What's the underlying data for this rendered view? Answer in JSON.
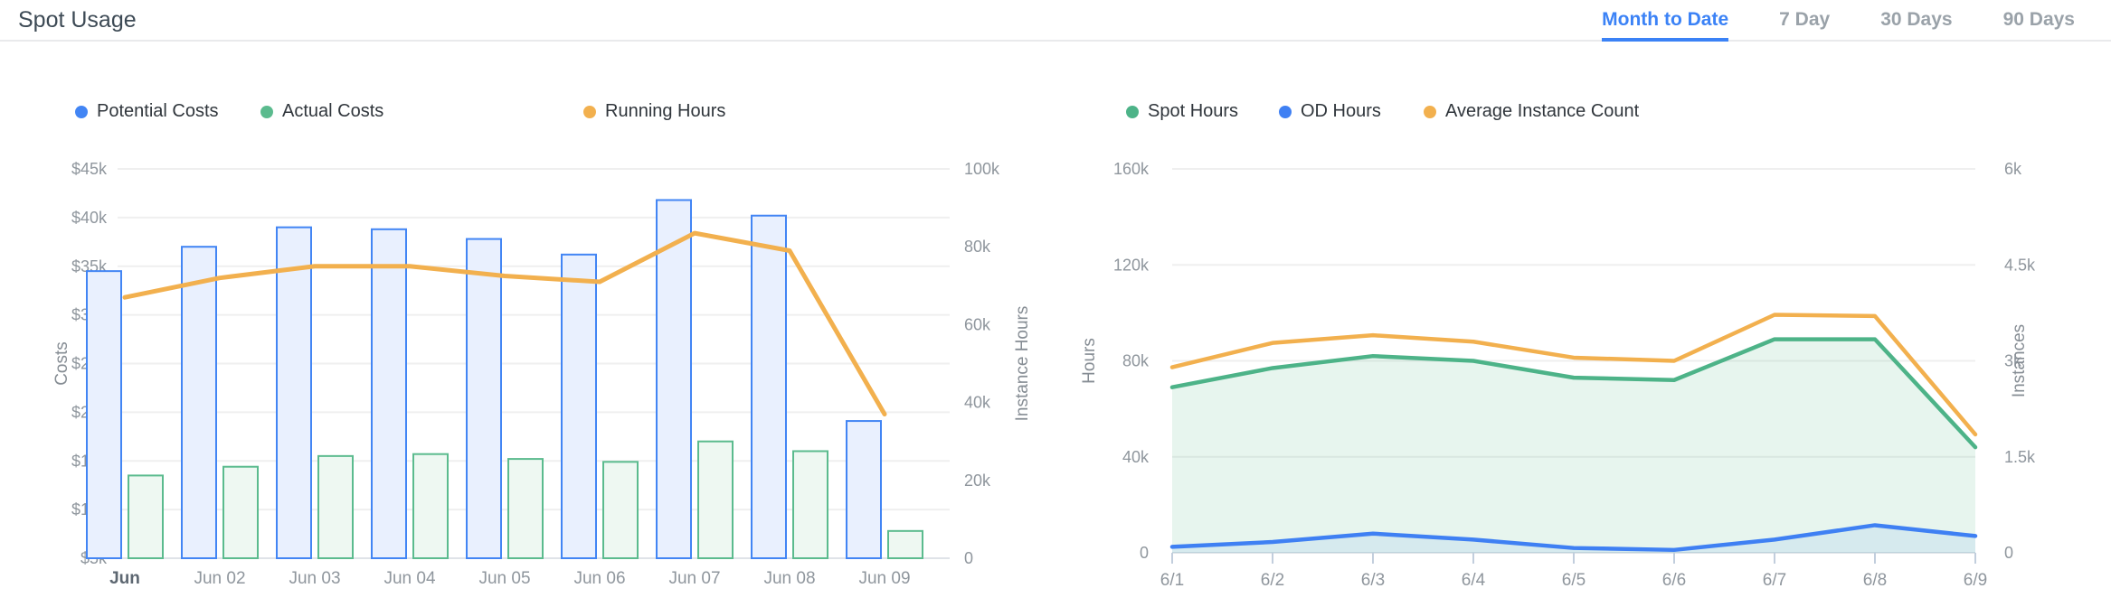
{
  "header": {
    "title": "Spot Usage",
    "tabs": [
      {
        "label": "Month to Date",
        "active": true
      },
      {
        "label": "7 Day",
        "active": false
      },
      {
        "label": "30 Days",
        "active": false
      },
      {
        "label": "90 Days",
        "active": false
      }
    ]
  },
  "colors": {
    "title_text": "#3d4a55",
    "tab_active": "#3b82f6",
    "tab_inactive": "#9aa2a9",
    "legend_text": "#30363c",
    "axis_tick_text": "#8f969d",
    "axis_title_text": "#868d94",
    "grid_line": "#efefef",
    "axis_line": "#dfe3e8",
    "x_tick_mark": "#c2cedd",
    "first_label": "#5d6771",
    "header_border": "#e9eaec"
  },
  "chart_data": [
    {
      "type": "bar",
      "subtype": "grouped-bars-with-line-overlay",
      "categories": [
        "Jun",
        "Jun 02",
        "Jun 03",
        "Jun 04",
        "Jun 05",
        "Jun 06",
        "Jun 07",
        "Jun 08",
        "Jun 09"
      ],
      "series": [
        {
          "name": "Potential Costs",
          "type": "bar",
          "axis": "left",
          "color": "#4285f4",
          "fill": "#e9f0fe",
          "values": [
            34500,
            37000,
            39000,
            38800,
            37800,
            36200,
            41800,
            40200,
            19100
          ]
        },
        {
          "name": "Actual Costs",
          "type": "bar",
          "axis": "left",
          "color": "#5bbb8e",
          "fill": "#eef8f2",
          "values": [
            13500,
            14400,
            15500,
            15700,
            15200,
            14900,
            17000,
            16000,
            7800
          ]
        },
        {
          "name": "Running Hours",
          "type": "line",
          "axis": "right",
          "color": "#f2b04e",
          "values": [
            67000,
            72000,
            75000,
            75000,
            72500,
            71000,
            83500,
            79000,
            37000
          ]
        }
      ],
      "left_axis": {
        "label": "Costs",
        "min": 5000,
        "max": 45000,
        "ticks": [
          "$5k",
          "$10k",
          "$15k",
          "$20k",
          "$25k",
          "$30k",
          "$35k",
          "$40k",
          "$45k"
        ]
      },
      "right_axis": {
        "label": "Instance Hours",
        "min": 0,
        "max": 100000,
        "ticks": [
          "0",
          "20k",
          "40k",
          "60k",
          "80k",
          "100k"
        ]
      },
      "grid": true,
      "legend_position": "top"
    },
    {
      "type": "area",
      "subtype": "area-lines-with-line-overlay",
      "categories": [
        "6/1",
        "6/2",
        "6/3",
        "6/4",
        "6/5",
        "6/6",
        "6/7",
        "6/8",
        "6/9"
      ],
      "series": [
        {
          "name": "Spot Hours",
          "type": "area",
          "axis": "left",
          "color": "#4db388",
          "fill": "rgba(86,185,138,0.14)",
          "values": [
            69000,
            77000,
            82000,
            80000,
            73000,
            72000,
            89000,
            89000,
            44000
          ]
        },
        {
          "name": "OD Hours",
          "type": "area",
          "axis": "left",
          "color": "#3f80f3",
          "fill": "rgba(66,133,244,0.10)",
          "values": [
            2500,
            4500,
            8000,
            5500,
            2000,
            1200,
            5500,
            11500,
            7000
          ]
        },
        {
          "name": "Average Instance Count",
          "type": "line",
          "axis": "right",
          "color": "#f2b04e",
          "values": [
            2900,
            3280,
            3400,
            3300,
            3050,
            3000,
            3720,
            3700,
            1850
          ]
        }
      ],
      "left_axis": {
        "label": "Hours",
        "min": 0,
        "max": 160000,
        "ticks": [
          "0",
          "40k",
          "80k",
          "120k",
          "160k"
        ]
      },
      "right_axis": {
        "label": "Instances",
        "min": 0,
        "max": 6000,
        "ticks": [
          "0",
          "1.5k",
          "3k",
          "4.5k",
          "6k"
        ]
      },
      "grid": true,
      "legend_position": "top"
    }
  ]
}
